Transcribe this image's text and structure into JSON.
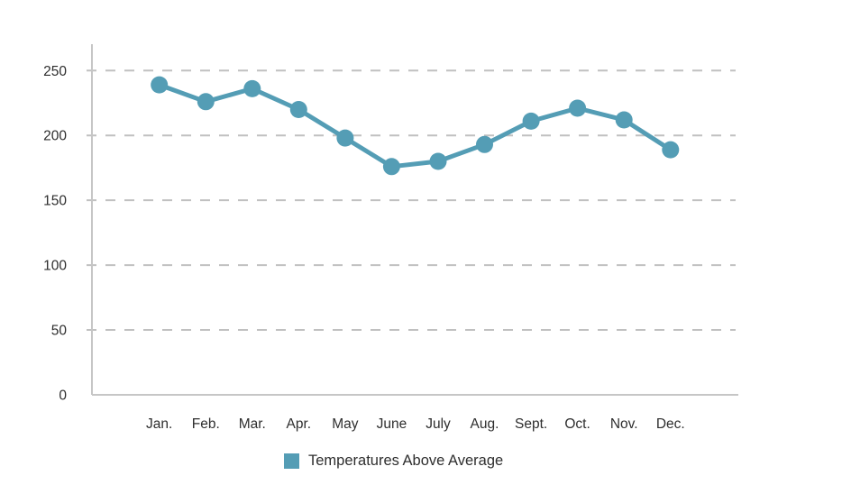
{
  "chart_data": {
    "type": "line",
    "title": "",
    "xlabel": "",
    "ylabel": "",
    "categories": [
      "Jan.",
      "Feb.",
      "Mar.",
      "Apr.",
      "May",
      "June",
      "July",
      "Aug.",
      "Sept.",
      "Oct.",
      "Nov.",
      "Dec."
    ],
    "series": [
      {
        "name": "Temperatures Above Average",
        "color": "#549db5",
        "values": [
          239,
          226,
          236,
          220,
          198,
          176,
          180,
          193,
          211,
          221,
          212,
          189
        ]
      }
    ],
    "ylim": [
      0,
      250
    ],
    "yticks": [
      0,
      50,
      100,
      150,
      200,
      250
    ],
    "grid": "horizontal-dashed",
    "legend_position": "bottom",
    "marker": "circle",
    "colors": {
      "axis": "#c6c6c6",
      "gridline": "#c0c0c0",
      "tick_text": "#2e2e2e"
    }
  }
}
